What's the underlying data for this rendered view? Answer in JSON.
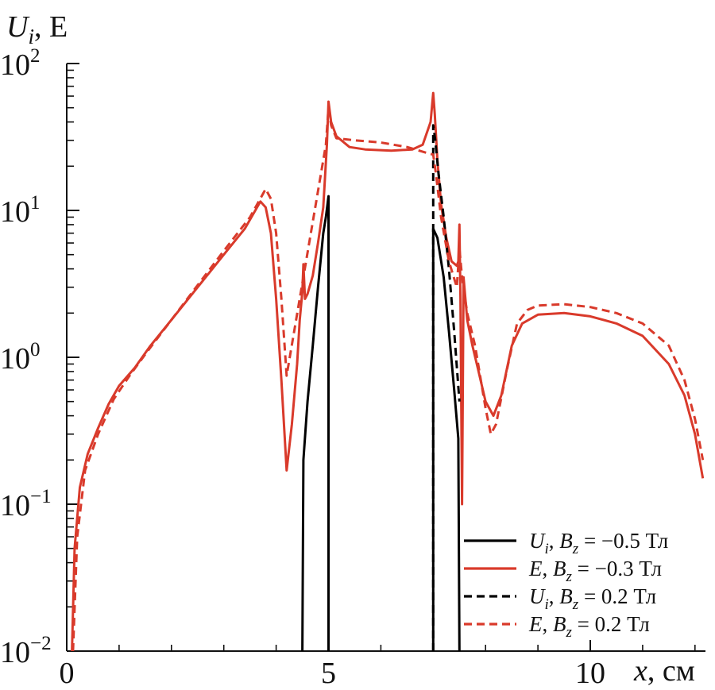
{
  "chart_data": {
    "type": "line",
    "title": "",
    "ylabel": "U_i, E",
    "ylabel_parts": {
      "var": "U",
      "sub": "i",
      "rest": ", E"
    },
    "xlabel": "x, см",
    "xlabel_parts": {
      "var": "x",
      "rest": ", см"
    },
    "xlim": [
      0,
      12.2
    ],
    "ylim": [
      0.01,
      100
    ],
    "yscale": "log",
    "grid": false,
    "legend_position": "bottom-right",
    "x_ticks": [
      {
        "value": 0,
        "label": "0"
      },
      {
        "value": 5,
        "label": "5"
      },
      {
        "value": 10,
        "label": "10"
      }
    ],
    "y_ticks": [
      {
        "value": 100,
        "base": "10",
        "exp": "2"
      },
      {
        "value": 10,
        "base": "10",
        "exp": "1"
      },
      {
        "value": 1,
        "base": "10",
        "exp": "0"
      },
      {
        "value": 0.1,
        "base": "10",
        "exp": "−1"
      },
      {
        "value": 0.01,
        "base": "10",
        "exp": "−2"
      }
    ],
    "series": [
      {
        "name": "U_i, B_z = −0.5 Тл",
        "legend": {
          "var": "U",
          "sub": "i",
          "mid": ", ",
          "var2": "B",
          "sub2": "z",
          "rest": " = −0.5 Тл"
        },
        "color": "#000000",
        "dash": false,
        "segments": [
          [
            [
              4.5,
              0.01
            ],
            [
              4.52,
              0.2
            ],
            [
              4.6,
              0.5
            ],
            [
              4.7,
              1.2
            ],
            [
              4.8,
              3.0
            ],
            [
              4.9,
              7.0
            ],
            [
              4.95,
              9.0
            ],
            [
              5.0,
              12.5
            ],
            [
              5.0,
              0.01
            ]
          ],
          [
            [
              7.0,
              0.01
            ],
            [
              7.0,
              7.5
            ],
            [
              7.08,
              6.5
            ],
            [
              7.2,
              3.5
            ],
            [
              7.3,
              1.5
            ],
            [
              7.4,
              0.6
            ],
            [
              7.48,
              0.28
            ],
            [
              7.5,
              0.01
            ]
          ]
        ]
      },
      {
        "name": "E, B_z = −0.3 Тл",
        "legend": {
          "var": "E",
          "sub": "",
          "mid": ", ",
          "var2": "B",
          "sub2": "z",
          "rest": " = −0.3 Тл"
        },
        "color": "#d93a2b",
        "dash": false,
        "segments": [
          [
            [
              0.1,
              0.01
            ],
            [
              0.15,
              0.05
            ],
            [
              0.25,
              0.13
            ],
            [
              0.4,
              0.22
            ],
            [
              0.6,
              0.33
            ],
            [
              0.8,
              0.48
            ],
            [
              1.0,
              0.64
            ],
            [
              1.3,
              0.85
            ],
            [
              1.6,
              1.2
            ],
            [
              2.0,
              1.8
            ],
            [
              2.5,
              3.0
            ],
            [
              3.0,
              5.0
            ],
            [
              3.4,
              7.5
            ],
            [
              3.7,
              11.5
            ],
            [
              3.8,
              10.5
            ],
            [
              3.9,
              7.0
            ],
            [
              4.0,
              2.5
            ],
            [
              4.1,
              0.7
            ],
            [
              4.2,
              0.17
            ],
            [
              4.3,
              0.35
            ],
            [
              4.4,
              0.9
            ],
            [
              4.45,
              1.8
            ],
            [
              4.5,
              2.8
            ],
            [
              4.52,
              4.3
            ],
            [
              4.55,
              2.5
            ],
            [
              4.6,
              2.7
            ],
            [
              4.7,
              3.6
            ],
            [
              4.8,
              6.0
            ],
            [
              4.9,
              10.5
            ],
            [
              4.97,
              28
            ],
            [
              5.0,
              55
            ],
            [
              5.05,
              40
            ],
            [
              5.15,
              32
            ],
            [
              5.4,
              27
            ],
            [
              5.7,
              26
            ],
            [
              6.2,
              25.5
            ],
            [
              6.6,
              26
            ],
            [
              6.8,
              28
            ],
            [
              6.95,
              40
            ],
            [
              7.0,
              63
            ],
            [
              7.03,
              45
            ],
            [
              7.08,
              22
            ],
            [
              7.15,
              11
            ],
            [
              7.25,
              6.5
            ],
            [
              7.35,
              4.5
            ],
            [
              7.45,
              4.2
            ],
            [
              7.48,
              4.5
            ],
            [
              7.5,
              8.0
            ],
            [
              7.52,
              2.5
            ],
            [
              7.55,
              0.1
            ],
            [
              7.58,
              3.5
            ],
            [
              7.65,
              1.8
            ],
            [
              7.75,
              1.2
            ],
            [
              7.85,
              0.85
            ],
            [
              8.0,
              0.5
            ],
            [
              8.15,
              0.4
            ],
            [
              8.3,
              0.55
            ],
            [
              8.5,
              1.2
            ],
            [
              8.7,
              1.7
            ],
            [
              9.0,
              1.95
            ],
            [
              9.5,
              2.0
            ],
            [
              10.0,
              1.9
            ],
            [
              10.5,
              1.7
            ],
            [
              11.0,
              1.4
            ],
            [
              11.5,
              0.9
            ],
            [
              11.8,
              0.55
            ],
            [
              12.0,
              0.3
            ],
            [
              12.15,
              0.15
            ]
          ]
        ]
      },
      {
        "name": "U_i, B_z = 0.2 Тл",
        "legend": {
          "var": "U",
          "sub": "i",
          "mid": ", ",
          "var2": "B",
          "sub2": "z",
          "rest": " = 0.2 Тл"
        },
        "color": "#000000",
        "dash": true,
        "segments": [
          [
            [
              7.0,
              0.01
            ],
            [
              7.0,
              38
            ],
            [
              7.04,
              30
            ],
            [
              7.1,
              18
            ],
            [
              7.2,
              9.0
            ],
            [
              7.3,
              4.0
            ],
            [
              7.4,
              1.5
            ],
            [
              7.5,
              0.5
            ]
          ]
        ]
      },
      {
        "name": "E, B_z = 0.2 Тл",
        "legend": {
          "var": "E",
          "sub": "",
          "mid": ", ",
          "var2": "B",
          "sub2": "z",
          "rest": " = 0.2 Тл"
        },
        "color": "#d93a2b",
        "dash": true,
        "segments": [
          [
            [
              0.12,
              0.01
            ],
            [
              0.2,
              0.06
            ],
            [
              0.35,
              0.17
            ],
            [
              0.6,
              0.3
            ],
            [
              0.9,
              0.52
            ],
            [
              1.2,
              0.75
            ],
            [
              1.5,
              1.05
            ],
            [
              2.0,
              1.8
            ],
            [
              2.5,
              3.1
            ],
            [
              3.0,
              5.3
            ],
            [
              3.5,
              9.0
            ],
            [
              3.8,
              14.0
            ],
            [
              3.9,
              12.0
            ],
            [
              4.0,
              7.0
            ],
            [
              4.1,
              2.5
            ],
            [
              4.2,
              0.75
            ],
            [
              4.95,
              28
            ],
            [
              5.0,
              50
            ],
            [
              5.05,
              38
            ],
            [
              5.15,
              31
            ],
            [
              5.5,
              30
            ],
            [
              6.0,
              29
            ],
            [
              6.5,
              27
            ],
            [
              6.9,
              24.5
            ],
            [
              7.0,
              24
            ],
            [
              7.05,
              18
            ],
            [
              7.15,
              9.0
            ],
            [
              7.3,
              4.5
            ],
            [
              7.45,
              3.0
            ],
            [
              7.5,
              5.5
            ],
            [
              7.55,
              3.5
            ],
            [
              7.65,
              2.0
            ],
            [
              7.8,
              1.2
            ],
            [
              8.0,
              0.45
            ],
            [
              8.1,
              0.3
            ],
            [
              8.2,
              0.35
            ],
            [
              8.4,
              0.8
            ],
            [
              8.6,
              1.7
            ],
            [
              8.8,
              2.1
            ],
            [
              9.0,
              2.25
            ],
            [
              9.5,
              2.3
            ],
            [
              10.0,
              2.2
            ],
            [
              10.5,
              2.0
            ],
            [
              11.0,
              1.7
            ],
            [
              11.5,
              1.2
            ],
            [
              11.8,
              0.7
            ],
            [
              12.0,
              0.38
            ],
            [
              12.15,
              0.2
            ]
          ]
        ]
      }
    ]
  }
}
